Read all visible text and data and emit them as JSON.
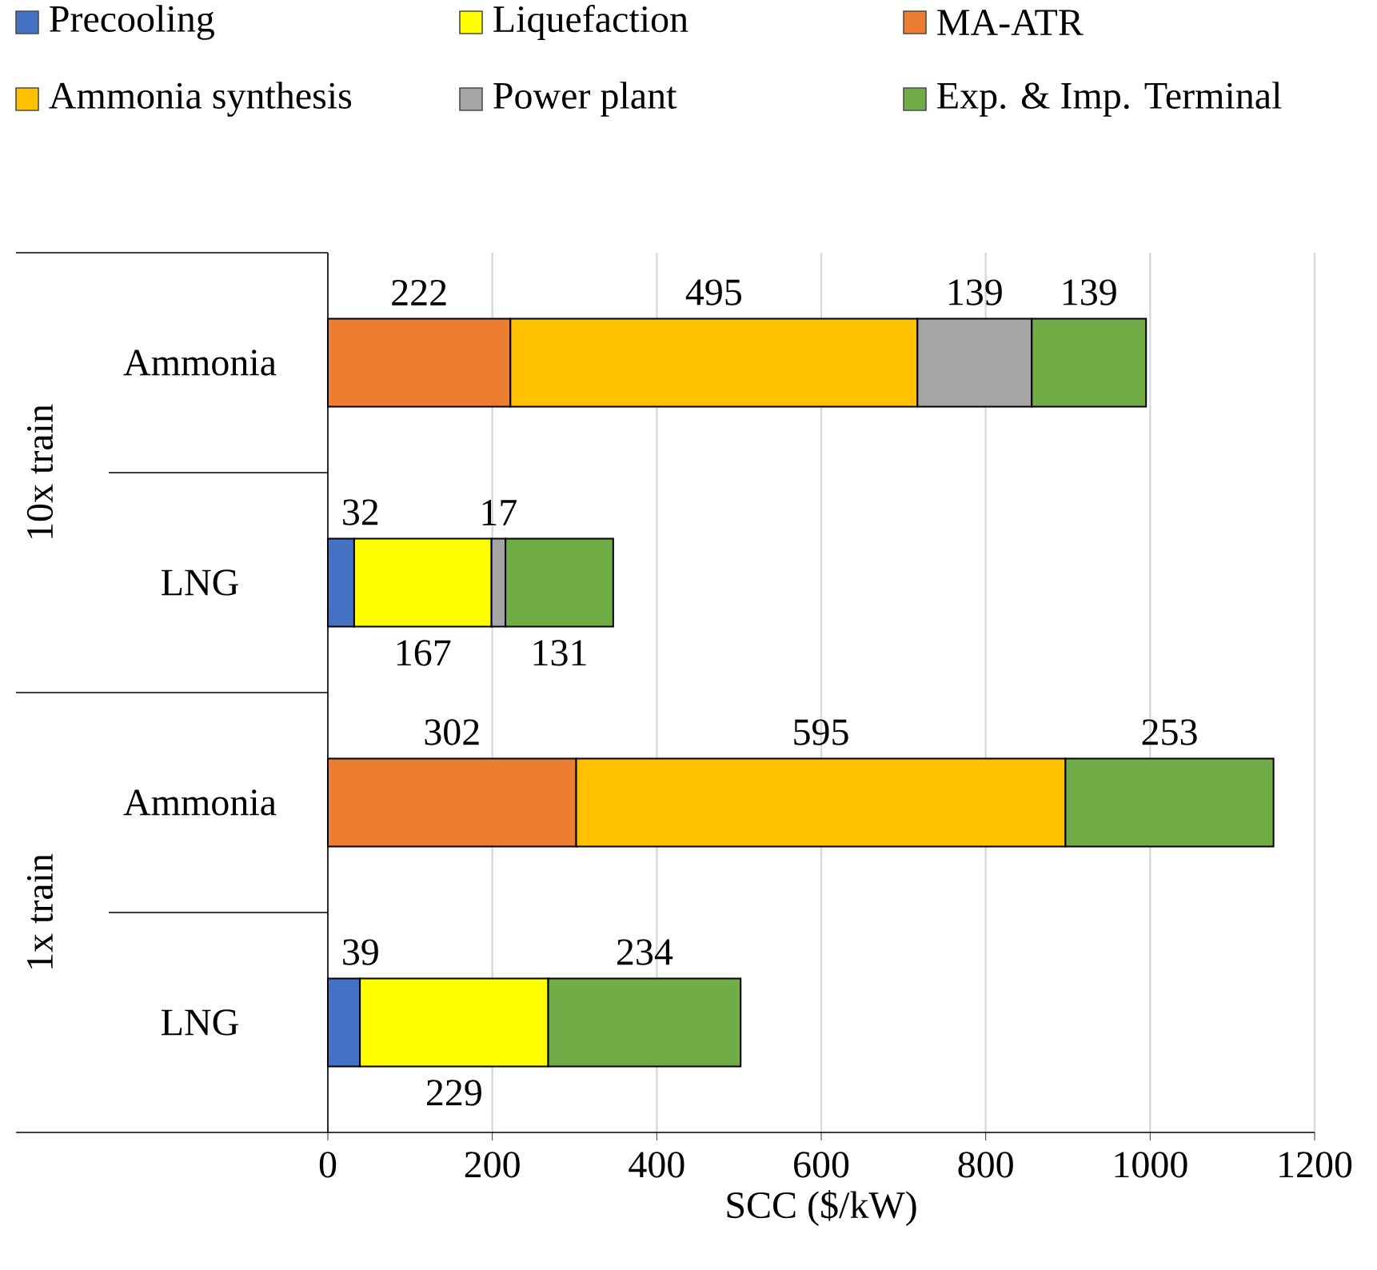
{
  "chart_data": {
    "type": "bar",
    "orientation": "horizontal",
    "stacked": true,
    "categories": [
      "Ammonia",
      "LNG",
      "Ammonia",
      "LNG"
    ],
    "xlabel": "SCC ($/kW)",
    "xlim": [
      0,
      1200
    ],
    "xticks": [
      0,
      200,
      400,
      600,
      800,
      1000,
      1200
    ],
    "grid": "x",
    "legend": "top",
    "data_labels": true,
    "annotations": [
      "10x train",
      "1x train"
    ],
    "series": [
      {
        "name": "Precooling",
        "color": "#4472c4",
        "values": [
          null,
          32,
          null,
          39
        ]
      },
      {
        "name": "Liquefaction",
        "color": "#ffff00",
        "values": [
          null,
          167,
          null,
          229
        ]
      },
      {
        "name": "MA-ATR",
        "color": "#ed7d31",
        "values": [
          222,
          null,
          302,
          null
        ]
      },
      {
        "name": "Ammonia synthesis",
        "color": "#ffc000",
        "values": [
          495,
          null,
          595,
          null
        ]
      },
      {
        "name": "Power plant",
        "color": "#a5a5a5",
        "values": [
          139,
          17,
          null,
          null
        ]
      },
      {
        "name": "Exp. & Imp. Terminal",
        "color": "#70ad47",
        "values": [
          139,
          131,
          253,
          234
        ]
      }
    ]
  }
}
